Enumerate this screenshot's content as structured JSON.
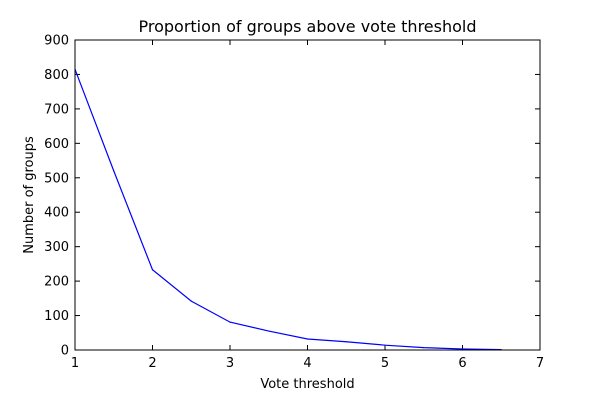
{
  "chart_data": {
    "type": "line",
    "title": "Proportion of groups above vote threshold",
    "xlabel": "Vote threshold",
    "ylabel": "Number of groups",
    "xlim": [
      1,
      7
    ],
    "ylim": [
      0,
      900
    ],
    "xticks": [
      1,
      2,
      3,
      4,
      5,
      6,
      7
    ],
    "yticks": [
      0,
      100,
      200,
      300,
      400,
      500,
      600,
      700,
      800,
      900
    ],
    "grid": false,
    "legend": "none",
    "series": [
      {
        "color": "#0000ff",
        "x": [
          1,
          1.5,
          2,
          2.5,
          3,
          3.5,
          4,
          4.5,
          5,
          5.5,
          6,
          6.5
        ],
        "y": [
          815,
          520,
          233,
          142,
          81,
          55,
          32,
          24,
          14,
          7,
          3,
          1
        ]
      }
    ]
  }
}
